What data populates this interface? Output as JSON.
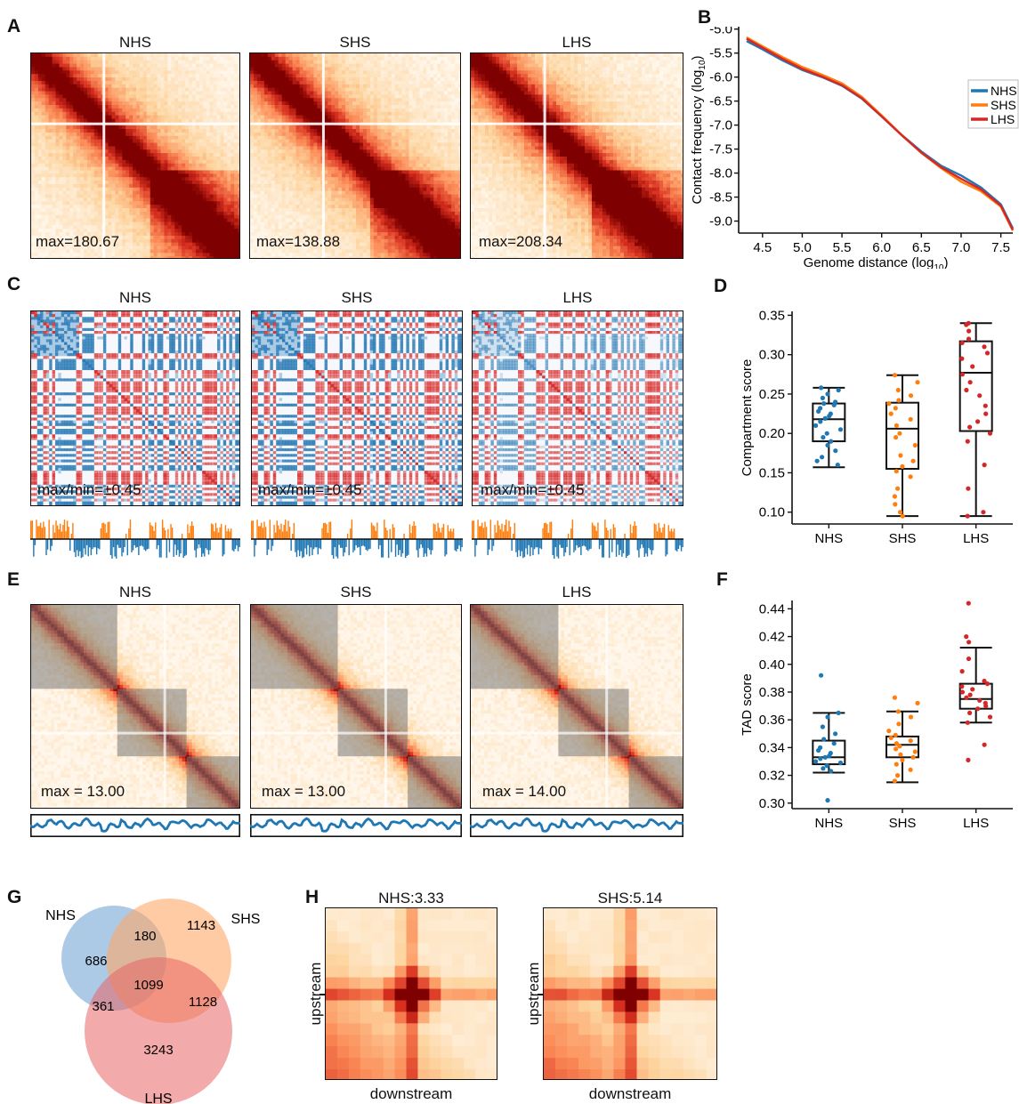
{
  "panels": {
    "A": {
      "letter": "A",
      "maps": [
        {
          "title": "NHS",
          "max_label": "max=180.67"
        },
        {
          "title": "SHS",
          "max_label": "max=138.88"
        },
        {
          "title": "LHS",
          "max_label": "max=208.34"
        }
      ]
    },
    "B": {
      "letter": "B"
    },
    "C": {
      "letter": "C",
      "maps": [
        {
          "title": "NHS",
          "max_label": "max/min=±0.45"
        },
        {
          "title": "SHS",
          "max_label": "max/min=±0.45"
        },
        {
          "title": "LHS",
          "max_label": "max/min=±0.45"
        }
      ]
    },
    "D": {
      "letter": "D"
    },
    "E": {
      "letter": "E",
      "maps": [
        {
          "title": "NHS",
          "max_label": "max = 13.00"
        },
        {
          "title": "SHS",
          "max_label": "max = 13.00"
        },
        {
          "title": "LHS",
          "max_label": "max = 14.00"
        }
      ]
    },
    "F": {
      "letter": "F"
    },
    "G": {
      "letter": "G"
    },
    "H": {
      "letter": "H",
      "maps": [
        {
          "title": "NHS:3.33",
          "xlabel": "downstream",
          "ylabel": "upstream"
        },
        {
          "title": "SHS:5.14",
          "xlabel": "downstream",
          "ylabel": "upstream"
        }
      ]
    }
  },
  "colors": {
    "NHS": "#1f77b4",
    "SHS": "#ff7f0e",
    "LHS": "#d62728",
    "heat_high": "#7f0000",
    "heat_low": "#fff5e6",
    "compartment_pos": "#d62728",
    "compartment_neg": "#2c7bb6"
  },
  "chart_data": [
    {
      "id": "B",
      "type": "line",
      "xlabel": "Genome distance (log",
      "xlabel_sub": "10",
      "xlabel_end": ")",
      "ylabel": "Contact frequency (log",
      "ylabel_sub": "10",
      "ylabel_end": ")",
      "xlim": [
        4.2,
        7.65
      ],
      "ylim": [
        -9.25,
        -4.95
      ],
      "xticks": [
        4.5,
        5.0,
        5.5,
        6.0,
        6.5,
        7.0,
        7.5
      ],
      "xtick_labels": [
        "4.5",
        "5.0",
        "5.5",
        "6.0",
        "6.5",
        "7.0",
        "7.5"
      ],
      "yticks": [
        -5.0,
        -5.5,
        -6.0,
        -6.5,
        -7.0,
        -7.5,
        -8.0,
        -8.5,
        -9.0
      ],
      "ytick_labels": [
        "-5.0",
        "-5.5",
        "-6.0",
        "-6.5",
        "-7.0",
        "-7.5",
        "-8.0",
        "-8.5",
        "-9.0"
      ],
      "legend_position": "top-right",
      "x": [
        4.3,
        4.5,
        4.75,
        5.0,
        5.25,
        5.5,
        5.75,
        6.0,
        6.25,
        6.5,
        6.75,
        7.0,
        7.25,
        7.5,
        7.65
      ],
      "series": [
        {
          "name": "NHS",
          "values": [
            -5.25,
            -5.42,
            -5.65,
            -5.85,
            -6.0,
            -6.18,
            -6.45,
            -6.82,
            -7.2,
            -7.55,
            -7.85,
            -8.05,
            -8.3,
            -8.65,
            -9.15
          ]
        },
        {
          "name": "SHS",
          "values": [
            -5.17,
            -5.36,
            -5.58,
            -5.79,
            -5.95,
            -6.13,
            -6.41,
            -6.8,
            -7.2,
            -7.58,
            -7.9,
            -8.18,
            -8.38,
            -8.7,
            -9.2
          ]
        },
        {
          "name": "LHS",
          "values": [
            -5.2,
            -5.39,
            -5.62,
            -5.83,
            -5.99,
            -6.17,
            -6.44,
            -6.82,
            -7.21,
            -7.57,
            -7.88,
            -8.12,
            -8.34,
            -8.68,
            -9.18
          ]
        }
      ]
    },
    {
      "id": "D",
      "type": "box",
      "ylabel": "Compartment score",
      "ylim": [
        0.085,
        0.355
      ],
      "yticks": [
        0.1,
        0.15,
        0.2,
        0.25,
        0.3,
        0.35
      ],
      "ytick_labels": [
        "0.10",
        "0.15",
        "0.20",
        "0.25",
        "0.30",
        "0.35"
      ],
      "categories": [
        "NHS",
        "SHS",
        "LHS"
      ],
      "boxes": [
        {
          "name": "NHS",
          "q1": 0.19,
          "median": 0.218,
          "q3": 0.238,
          "whisker_low": 0.157,
          "whisker_high": 0.258,
          "points": [
            0.258,
            0.255,
            0.25,
            0.245,
            0.24,
            0.238,
            0.236,
            0.232,
            0.228,
            0.225,
            0.222,
            0.219,
            0.215,
            0.21,
            0.205,
            0.2,
            0.195,
            0.19,
            0.185,
            0.178,
            0.17,
            0.165,
            0.16
          ]
        },
        {
          "name": "SHS",
          "q1": 0.155,
          "median": 0.206,
          "q3": 0.239,
          "whisker_low": 0.095,
          "whisker_high": 0.274,
          "points": [
            0.274,
            0.265,
            0.255,
            0.248,
            0.242,
            0.238,
            0.232,
            0.225,
            0.218,
            0.21,
            0.2,
            0.195,
            0.185,
            0.172,
            0.165,
            0.158,
            0.152,
            0.145,
            0.13,
            0.12,
            0.11,
            0.1,
            0.095
          ]
        },
        {
          "name": "LHS",
          "q1": 0.203,
          "median": 0.277,
          "q3": 0.317,
          "whisker_low": 0.095,
          "whisker_high": 0.34,
          "points": [
            0.34,
            0.338,
            0.33,
            0.32,
            0.315,
            0.31,
            0.302,
            0.295,
            0.285,
            0.275,
            0.265,
            0.255,
            0.248,
            0.235,
            0.225,
            0.215,
            0.208,
            0.2,
            0.19,
            0.16,
            0.13,
            0.1,
            0.095
          ]
        }
      ]
    },
    {
      "id": "F",
      "type": "box",
      "ylabel": "TAD score",
      "ylim": [
        0.296,
        0.446
      ],
      "yticks": [
        0.3,
        0.32,
        0.34,
        0.36,
        0.38,
        0.4,
        0.42,
        0.44
      ],
      "ytick_labels": [
        "0.30",
        "0.32",
        "0.34",
        "0.36",
        "0.38",
        "0.40",
        "0.42",
        "0.44"
      ],
      "categories": [
        "NHS",
        "SHS",
        "LHS"
      ],
      "boxes": [
        {
          "name": "NHS",
          "q1": 0.328,
          "median": 0.333,
          "q3": 0.345,
          "whisker_low": 0.322,
          "whisker_high": 0.365,
          "points": [
            0.392,
            0.365,
            0.362,
            0.355,
            0.35,
            0.346,
            0.343,
            0.34,
            0.338,
            0.336,
            0.334,
            0.333,
            0.332,
            0.33,
            0.329,
            0.327,
            0.325,
            0.323,
            0.302
          ]
        },
        {
          "name": "SHS",
          "q1": 0.333,
          "median": 0.342,
          "q3": 0.348,
          "whisker_low": 0.315,
          "whisker_high": 0.366,
          "points": [
            0.376,
            0.372,
            0.366,
            0.362,
            0.357,
            0.352,
            0.349,
            0.347,
            0.345,
            0.343,
            0.341,
            0.339,
            0.337,
            0.335,
            0.333,
            0.331,
            0.328,
            0.324,
            0.32,
            0.316
          ]
        },
        {
          "name": "LHS",
          "q1": 0.368,
          "median": 0.375,
          "q3": 0.386,
          "whisker_low": 0.358,
          "whisker_high": 0.412,
          "points": [
            0.444,
            0.42,
            0.416,
            0.404,
            0.395,
            0.388,
            0.386,
            0.384,
            0.382,
            0.38,
            0.378,
            0.376,
            0.374,
            0.372,
            0.37,
            0.368,
            0.365,
            0.362,
            0.358,
            0.342,
            0.331
          ]
        }
      ]
    },
    {
      "id": "G",
      "type": "venn",
      "sets": [
        {
          "name": "NHS",
          "label": "NHS"
        },
        {
          "name": "SHS",
          "label": "SHS"
        },
        {
          "name": "LHS",
          "label": "LHS"
        }
      ],
      "regions": {
        "NHS_only": "686",
        "NHS_SHS": "180",
        "SHS_only": "1143",
        "NHS_LHS": "361",
        "all": "1099",
        "SHS_LHS": "1128",
        "LHS_only": "3243"
      }
    }
  ]
}
